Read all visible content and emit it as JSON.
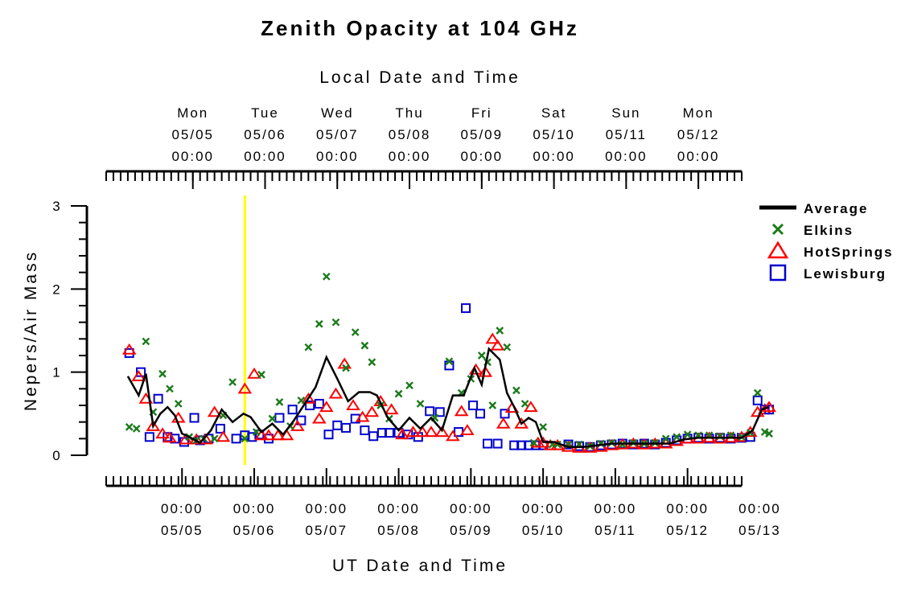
{
  "chart_data": {
    "type": "scatter",
    "title": "Zenith Opacity at 104 GHz",
    "top_axis_label": "Local Date and Time",
    "xlabel": "UT Date and Time",
    "ylabel": "Nepers/Air Mass",
    "ylim": [
      0,
      3
    ],
    "y_ticks": [
      "0",
      "1",
      "2",
      "3"
    ],
    "xlim_days": [
      -1.2,
      7.6
    ],
    "top_ticks": [
      {
        "day": "Mon",
        "date": "05/05",
        "time": "00:00",
        "x": 0.0
      },
      {
        "day": "Tue",
        "date": "05/06",
        "time": "00:00",
        "x": 1.0
      },
      {
        "day": "Wed",
        "date": "05/07",
        "time": "00:00",
        "x": 2.0
      },
      {
        "day": "Thu",
        "date": "05/08",
        "time": "00:00",
        "x": 3.0
      },
      {
        "day": "Fri",
        "date": "05/09",
        "time": "00:00",
        "x": 4.0
      },
      {
        "day": "Sat",
        "date": "05/10",
        "time": "00:00",
        "x": 5.0
      },
      {
        "day": "Sun",
        "date": "05/11",
        "time": "00:00",
        "x": 6.0
      },
      {
        "day": "Mon",
        "date": "05/12",
        "time": "00:00",
        "x": 7.0
      }
    ],
    "bottom_ticks": [
      {
        "time": "00:00",
        "date": "05/05",
        "x": -0.15
      },
      {
        "time": "00:00",
        "date": "05/06",
        "x": 0.85
      },
      {
        "time": "00:00",
        "date": "05/07",
        "x": 1.85
      },
      {
        "time": "00:00",
        "date": "05/08",
        "x": 2.85
      },
      {
        "time": "00:00",
        "date": "05/09",
        "x": 3.85
      },
      {
        "time": "00:00",
        "date": "05/10",
        "x": 4.85
      },
      {
        "time": "00:00",
        "date": "05/11",
        "x": 5.85
      },
      {
        "time": "00:00",
        "date": "05/12",
        "x": 6.85
      },
      {
        "time": "00:00",
        "date": "05/13",
        "x": 7.85
      }
    ],
    "current_time_marker_x": 0.72,
    "colors": {
      "average": "#000000",
      "elkins": "#1a7a1a",
      "hotsprings": "#ff0000",
      "lewisburg": "#0000cc",
      "marker": "#ffff00"
    },
    "legend_position": "top-right",
    "series": [
      {
        "name": "Average",
        "style": "line",
        "x": [
          -0.9,
          -0.75,
          -0.65,
          -0.55,
          -0.45,
          -0.35,
          -0.25,
          -0.15,
          -0.05,
          0.1,
          0.25,
          0.4,
          0.55,
          0.7,
          0.8,
          0.95,
          1.1,
          1.25,
          1.4,
          1.55,
          1.7,
          1.85,
          2.0,
          2.15,
          2.3,
          2.45,
          2.55,
          2.7,
          2.85,
          3.0,
          3.15,
          3.3,
          3.45,
          3.6,
          3.75,
          3.9,
          4.0,
          4.1,
          4.25,
          4.35,
          4.45,
          4.55,
          4.65,
          4.75,
          4.85,
          5.0,
          5.2,
          5.4,
          5.6,
          5.8,
          6.0,
          6.2,
          6.4,
          6.6,
          6.8,
          7.0,
          7.2,
          7.4,
          7.6,
          7.75,
          7.88,
          7.97
        ],
        "y": [
          0.95,
          0.72,
          0.98,
          0.35,
          0.5,
          0.58,
          0.48,
          0.26,
          0.22,
          0.15,
          0.3,
          0.55,
          0.4,
          0.5,
          0.46,
          0.28,
          0.38,
          0.25,
          0.42,
          0.62,
          0.82,
          1.18,
          0.92,
          0.65,
          0.76,
          0.76,
          0.72,
          0.45,
          0.3,
          0.45,
          0.32,
          0.45,
          0.3,
          0.72,
          0.72,
          1.05,
          0.85,
          1.28,
          1.15,
          0.75,
          0.58,
          0.38,
          0.45,
          0.4,
          0.16,
          0.16,
          0.1,
          0.1,
          0.12,
          0.14,
          0.14,
          0.14,
          0.14,
          0.14,
          0.19,
          0.21,
          0.21,
          0.21,
          0.21,
          0.3,
          0.55,
          0.58
        ]
      },
      {
        "name": "Elkins",
        "style": "x",
        "x": [
          -0.88,
          -0.78,
          -0.65,
          -0.55,
          -0.42,
          -0.32,
          -0.2,
          -0.05,
          0.05,
          0.15,
          0.3,
          0.42,
          0.55,
          0.72,
          0.88,
          0.95,
          1.1,
          1.2,
          1.35,
          1.5,
          1.6,
          1.75,
          1.85,
          1.98,
          2.12,
          2.25,
          2.38,
          2.48,
          2.6,
          2.72,
          2.85,
          3.0,
          3.15,
          3.35,
          3.55,
          3.72,
          3.85,
          4.0,
          4.08,
          4.15,
          4.25,
          4.35,
          4.48,
          4.6,
          4.72,
          4.85,
          4.98,
          5.05
        ],
        "y": [
          0.34,
          0.32,
          1.37,
          0.52,
          0.98,
          0.8,
          0.62,
          0.22,
          0.18,
          0.2,
          0.2,
          0.48,
          0.88,
          0.2,
          0.28,
          0.97,
          0.44,
          0.64,
          0.35,
          0.66,
          1.3,
          1.58,
          2.15,
          1.6,
          1.05,
          1.48,
          1.32,
          1.12,
          0.6,
          0.44,
          0.74,
          0.84,
          0.62,
          0.45,
          1.13,
          0.75,
          0.92,
          1.2,
          1.12,
          0.6,
          1.5,
          1.3,
          0.78,
          0.62,
          0.15,
          0.34,
          0.13,
          0.13
        ]
      },
      {
        "name": "HotSprings",
        "style": "triangle",
        "x": [
          -0.88,
          -0.75,
          -0.65,
          -0.55,
          -0.42,
          -0.32,
          -0.2,
          -0.1,
          0.05,
          0.18,
          0.3,
          0.42,
          0.72,
          0.85,
          0.95,
          1.05,
          1.18,
          1.3,
          1.45,
          1.6,
          1.75,
          1.85,
          1.98,
          2.1,
          2.22,
          2.35,
          2.48,
          2.6,
          2.75,
          2.9,
          3.05,
          3.18,
          3.3,
          3.45,
          3.6,
          3.72,
          3.8,
          3.92,
          4.05,
          4.15,
          4.22,
          4.3,
          4.42,
          4.55,
          4.68,
          4.78,
          4.85,
          4.95,
          5.05
        ],
        "y": [
          1.27,
          0.95,
          0.68,
          0.35,
          0.26,
          0.21,
          0.45,
          0.19,
          0.19,
          0.19,
          0.52,
          0.22,
          0.8,
          0.98,
          0.24,
          0.24,
          0.24,
          0.24,
          0.35,
          0.68,
          0.44,
          0.58,
          0.74,
          1.1,
          0.6,
          0.46,
          0.52,
          0.65,
          0.55,
          0.25,
          0.28,
          0.28,
          0.28,
          0.28,
          0.23,
          0.53,
          0.3,
          1.03,
          1.0,
          1.4,
          1.32,
          0.38,
          0.57,
          0.38,
          0.58,
          0.15,
          0.15,
          0.12,
          0.12
        ]
      },
      {
        "name": "Lewisburg",
        "style": "square",
        "x": [
          -0.88,
          -0.72,
          -0.6,
          -0.48,
          -0.35,
          -0.25,
          -0.12,
          0.02,
          0.1,
          0.22,
          0.38,
          0.6,
          0.72,
          0.82,
          0.92,
          1.05,
          1.2,
          1.38,
          1.5,
          1.62,
          1.75,
          1.88,
          2.0,
          2.12,
          2.25,
          2.38,
          2.5,
          2.62,
          2.72,
          2.85,
          2.98,
          3.12,
          3.28,
          3.42,
          3.55,
          3.68,
          3.78,
          3.88,
          3.98,
          4.08,
          4.22,
          4.32,
          4.45,
          4.55,
          4.65,
          4.75,
          4.85
        ],
        "y": [
          1.23,
          1.0,
          0.22,
          0.68,
          0.22,
          0.2,
          0.16,
          0.45,
          0.18,
          0.2,
          0.32,
          0.2,
          0.24,
          0.22,
          0.25,
          0.2,
          0.45,
          0.55,
          0.42,
          0.6,
          0.62,
          0.25,
          0.36,
          0.33,
          0.44,
          0.3,
          0.23,
          0.27,
          0.27,
          0.27,
          0.25,
          0.22,
          0.53,
          0.52,
          1.08,
          0.28,
          1.77,
          0.6,
          0.5,
          0.14,
          0.14,
          0.5,
          0.12,
          0.12,
          0.12,
          0.12,
          0.12
        ]
      }
    ],
    "tail_scatter": {
      "x": [
        5.2,
        5.35,
        5.5,
        5.65,
        5.8,
        5.95,
        6.1,
        6.25,
        6.4,
        6.55,
        6.7,
        6.85,
        7.0,
        7.15,
        7.3,
        7.45,
        7.6,
        7.72,
        7.82,
        7.92,
        7.98
      ],
      "hotsprings_y": [
        0.1,
        0.09,
        0.09,
        0.1,
        0.12,
        0.13,
        0.14,
        0.13,
        0.14,
        0.14,
        0.17,
        0.2,
        0.2,
        0.21,
        0.2,
        0.21,
        0.22,
        0.28,
        0.52,
        0.55,
        0.58
      ],
      "elkins_y": [
        0.13,
        0.13,
        0.11,
        0.14,
        0.15,
        0.13,
        0.15,
        0.14,
        0.15,
        0.2,
        0.22,
        0.25,
        0.24,
        0.24,
        0.23,
        0.24,
        0.22,
        0.27,
        0.75,
        0.28,
        0.26
      ],
      "lewisburg_y": [
        0.13,
        0.11,
        0.1,
        0.12,
        0.13,
        0.14,
        0.13,
        0.14,
        0.13,
        0.15,
        0.18,
        0.2,
        0.21,
        0.2,
        0.21,
        0.2,
        0.21,
        0.22,
        0.66,
        0.55,
        0.55
      ]
    }
  }
}
